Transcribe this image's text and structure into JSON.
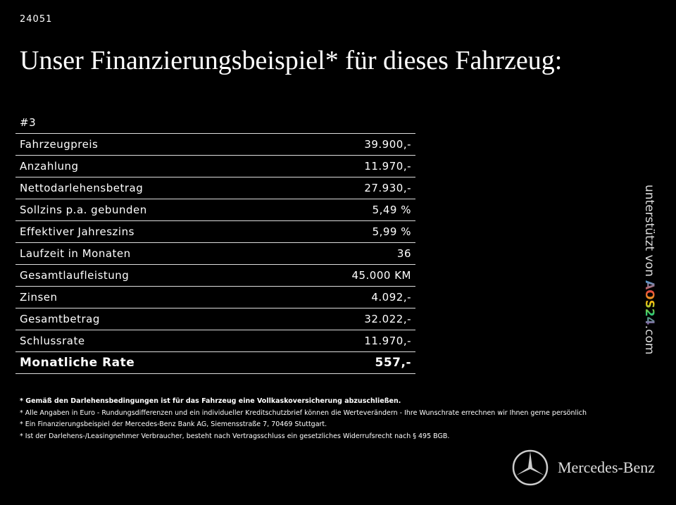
{
  "header": {
    "id": "24051",
    "title": "Unser Finanzierungsbeispiel* für dieses Fahrzeug:"
  },
  "table": {
    "heading": "#3",
    "rows": [
      [
        "Fahrzeugpreis",
        "39.900,-"
      ],
      [
        "Anzahlung",
        "11.970,-"
      ],
      [
        "Nettodarlehensbetrag",
        "27.930,-"
      ],
      [
        "Sollzins p.a. gebunden",
        "5,49 %"
      ],
      [
        "Effektiver Jahreszins",
        "5,99 %"
      ],
      [
        "Laufzeit in Monaten",
        "36"
      ],
      [
        "Gesamtlaufleistung",
        "45.000 KM"
      ],
      [
        "Zinsen",
        "4.092,-"
      ],
      [
        "Gesamtbetrag",
        "32.022,-"
      ],
      [
        "Schlussrate",
        "11.970,-"
      ],
      [
        "Monatliche Rate",
        "557,-"
      ]
    ]
  },
  "footnotes": [
    "* Gemäß den Darlehensbedingungen ist für das Fahrzeug eine Vollkaskoversicherung abzuschließen.",
    "* Alle Angaben in Euro - Rundungsdifferenzen und ein individueller Kreditschutzbrief können die Werteverändern - Ihre Wunschrate errechnen wir Ihnen gerne persönlich",
    "* Ein Finanzierungsbeispiel der Mercedes-Benz Bank AG, Siemensstraße 7, 70469 Stuttgart.",
    "* Ist der Darlehens-/Leasingnehmer Verbraucher, besteht nach Vertragsschluss ein gesetzliches Widerrufsrecht nach § 495 BGB."
  ],
  "sidebar": {
    "prefix": "unterstützt von",
    "brand": "AOS24",
    "suffix": ".com"
  },
  "logo": {
    "text": "Mercedes-Benz"
  }
}
